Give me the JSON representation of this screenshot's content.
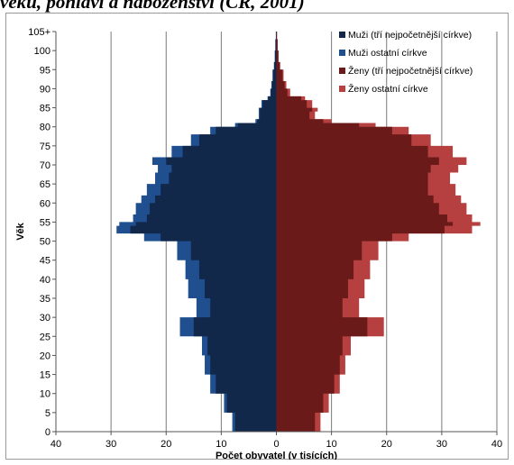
{
  "heading_fragment": "věku, pohlaví a náboženství (ČR, 2001)",
  "chart_data": {
    "type": "bar",
    "orientation": "horizontal-population-pyramid",
    "xlabel": "Počet obyvatel (v tisících)",
    "ylabel": "Věk",
    "xlim": [
      -40,
      40
    ],
    "x_ticks": [
      -40,
      -30,
      -20,
      -10,
      0,
      10,
      20,
      30,
      40
    ],
    "x_tick_labels": [
      "40",
      "30",
      "20",
      "10",
      "0",
      "10",
      "20",
      "30",
      "40"
    ],
    "ylim": [
      0,
      105
    ],
    "y_tick_labels": [
      "0",
      "5",
      "10",
      "15",
      "20",
      "25",
      "30",
      "35",
      "40",
      "45",
      "50",
      "55",
      "60",
      "65",
      "70",
      "75",
      "80",
      "85",
      "90",
      "95",
      "100",
      "105+"
    ],
    "grid": "vertical gridlines at every 10",
    "legend_position": "top-right",
    "ages": [
      0,
      5,
      10,
      15,
      20,
      25,
      30,
      35,
      40,
      45,
      50,
      52,
      54,
      55,
      57,
      60,
      62,
      65,
      68,
      70,
      72,
      75,
      78,
      80,
      81,
      82,
      84,
      85,
      87,
      88,
      90,
      92,
      95,
      97,
      100,
      103,
      105
    ],
    "series": [
      {
        "name": "Muži (tří nejpočetnější církve)",
        "color": "#12284a",
        "side": "left",
        "values": [
          7.5,
          9,
          11,
          12,
          12.5,
          15,
          12,
          13,
          14,
          15.5,
          21,
          26.5,
          25.5,
          23.5,
          23,
          22,
          21,
          19.5,
          19,
          20,
          17,
          14,
          11,
          7,
          3.5,
          3,
          3,
          2.5,
          1.5,
          1,
          0.8,
          0.6,
          0.4,
          0.25,
          0.15,
          0.05,
          0
        ]
      },
      {
        "name": "Muži ostatní církve",
        "color": "#1f4f8f",
        "side": "left",
        "values": [
          8,
          9.5,
          12,
          13,
          13.5,
          17.5,
          14.5,
          16,
          16.5,
          18,
          24,
          29,
          28.5,
          26,
          25.5,
          24.5,
          23.5,
          22,
          21.5,
          22.5,
          19,
          15.5,
          12,
          7.5,
          3.8,
          3.2,
          3.2,
          2.7,
          1.6,
          1.1,
          0.9,
          0.7,
          0.45,
          0.3,
          0.2,
          0.1,
          0
        ]
      },
      {
        "name": "Ženy (tří nejpočetnější církve)",
        "color": "#6b1a1a",
        "side": "right",
        "values": [
          7,
          8.5,
          10.5,
          11.5,
          12,
          16.5,
          12,
          13,
          14,
          15.5,
          21,
          30.5,
          32,
          31,
          29.5,
          28.5,
          27.5,
          27.5,
          28,
          29.5,
          27.5,
          24.5,
          21,
          15,
          8.5,
          6,
          6.5,
          5.5,
          4.5,
          2,
          1.5,
          1.1,
          0.6,
          0.35,
          0.2,
          0.1,
          0
        ]
      },
      {
        "name": "Ženy ostatní církve",
        "color": "#b5403f",
        "side": "right",
        "values": [
          8,
          9.5,
          11.5,
          12.5,
          13.5,
          19.5,
          15,
          16,
          17,
          18.5,
          24,
          35.5,
          37,
          35.5,
          34.5,
          33.5,
          32.5,
          31.5,
          33,
          34.5,
          32,
          28,
          24,
          18,
          10,
          7,
          7.5,
          6.5,
          5.2,
          2.5,
          1.8,
          1.3,
          0.7,
          0.4,
          0.25,
          0.12,
          0
        ]
      }
    ]
  }
}
